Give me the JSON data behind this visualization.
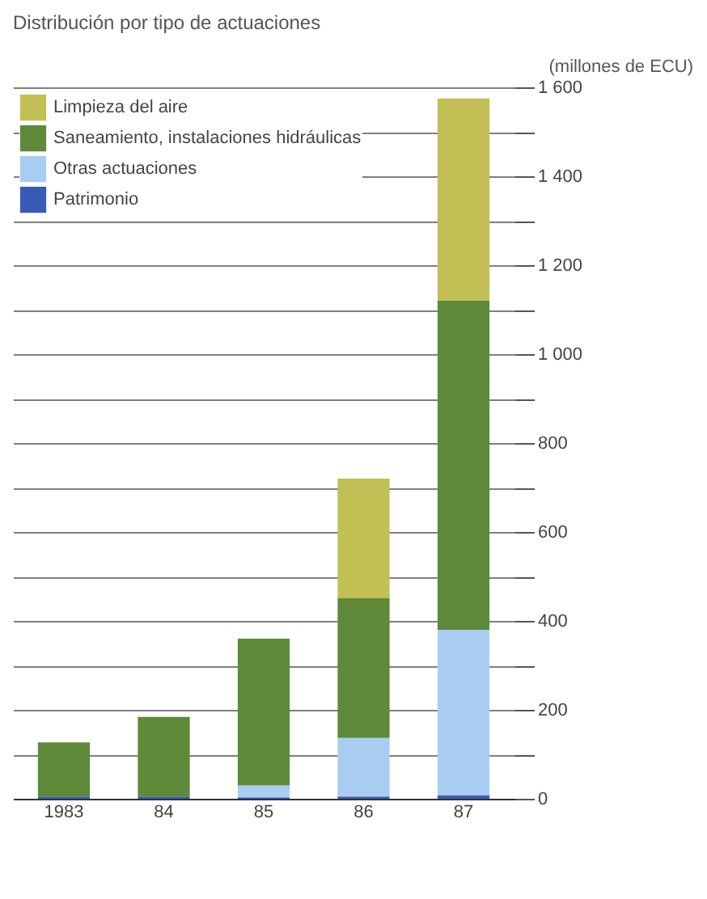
{
  "chart_data": {
    "type": "bar",
    "title": "Distribución por tipo de actuaciones",
    "ylabel": "(millones de ECU)",
    "categories": [
      "1983",
      "84",
      "85",
      "86",
      "87"
    ],
    "stacked": true,
    "series": [
      {
        "name": "Patrimonio",
        "color": "#3a5bb5",
        "values": [
          5,
          5,
          3,
          5,
          8
        ]
      },
      {
        "name": "Otras actuaciones",
        "color": "#a8cdf0",
        "values": [
          0,
          0,
          27,
          132,
          372
        ]
      },
      {
        "name": "Saneamiento, instalaciones hidráulicas",
        "color": "#5e8a3a",
        "values": [
          122,
          179,
          330,
          314,
          741
        ]
      },
      {
        "name": "Limpieza del aire",
        "color": "#c2bf55",
        "values": [
          0,
          0,
          0,
          269,
          454
        ]
      }
    ],
    "ylim": [
      0,
      1600
    ],
    "yticks": [
      0,
      {
        "value": 100,
        "label": null
      },
      200,
      {
        "value": 300,
        "label": null
      },
      400,
      {
        "value": 500,
        "label": null
      },
      600,
      {
        "value": 700,
        "label": null
      },
      800,
      {
        "value": 900,
        "label": null
      },
      {
        "value": 1000,
        "label": "1 000"
      },
      {
        "value": 1100,
        "label": null
      },
      {
        "value": 1200,
        "label": "1 200"
      },
      {
        "value": 1300,
        "label": null
      },
      {
        "value": 1400,
        "label": "1 400"
      },
      {
        "value": 1500,
        "label": null
      },
      {
        "value": 1600,
        "label": "1 600"
      }
    ],
    "grid": "y",
    "legend": "top left"
  }
}
